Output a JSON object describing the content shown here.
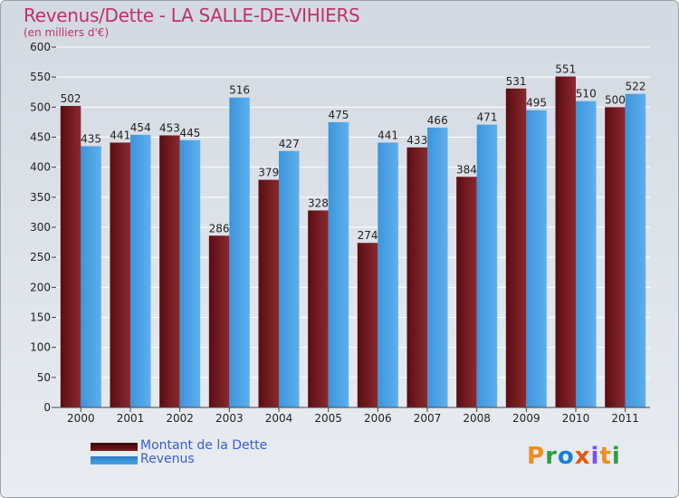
{
  "title": "Revenus/Dette - LA SALLE-DE-VIHIERS",
  "subtitle": "(en milliers d'€)",
  "colors": {
    "dette": "#7a1a1f",
    "revenus": "#4aa3e6",
    "title": "#c0306b",
    "legend_text": "#3b5cd6"
  },
  "chart_data": {
    "type": "bar",
    "title": "Revenus/Dette - LA SALLE-DE-VIHIERS",
    "ylabel": "(en milliers d'€)",
    "xlabel": "",
    "categories": [
      "2000",
      "2001",
      "2002",
      "2003",
      "2004",
      "2005",
      "2006",
      "2007",
      "2008",
      "2009",
      "2010",
      "2011"
    ],
    "series": [
      {
        "name": "Montant de la Dette",
        "values": [
          502,
          441,
          453,
          286,
          379,
          328,
          274,
          433,
          384,
          531,
          551,
          500
        ]
      },
      {
        "name": "Revenus",
        "values": [
          435,
          454,
          445,
          516,
          427,
          475,
          441,
          466,
          471,
          495,
          510,
          522
        ]
      }
    ],
    "ylim": [
      0,
      600
    ],
    "yticks": [
      0,
      50,
      100,
      150,
      200,
      250,
      300,
      350,
      400,
      450,
      500,
      550,
      600
    ],
    "grid": true,
    "legend_position": "bottom-left"
  },
  "legend": {
    "dette_label": "Montant de la Dette",
    "revenus_label": "Revenus"
  },
  "logo": {
    "text": "Proxiti",
    "letters": [
      "P",
      "r",
      "o",
      "x",
      "i",
      "t",
      "i"
    ],
    "letter_colors": [
      "#f28c1e",
      "#2f9e44",
      "#1c7ed6",
      "#e8590c",
      "#7950f2",
      "#f28c1e",
      "#2f9e44"
    ]
  }
}
